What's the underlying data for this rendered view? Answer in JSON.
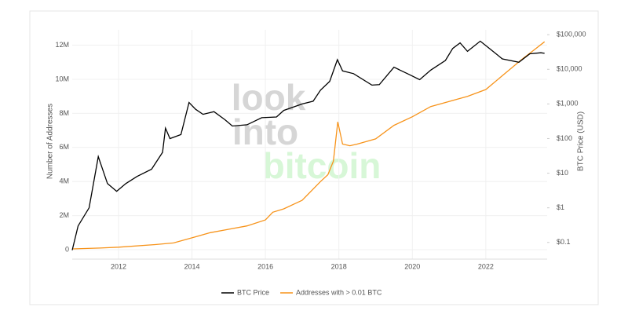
{
  "chart_data": {
    "type": "line",
    "watermark": [
      "look",
      "into",
      "bitcoin"
    ],
    "ylabel": "Number of Addresses",
    "y2label": "BTC Price (USD)",
    "xlim": [
      2010.74,
      2023.67
    ],
    "xticks": [
      2012,
      2014,
      2016,
      2018,
      2020,
      2022
    ],
    "ylim": [
      -550000,
      12900000
    ],
    "yticks": [
      0,
      {
        "value": 2000000,
        "label": "2M"
      },
      {
        "value": 4000000,
        "label": "4M"
      },
      {
        "value": 6000000,
        "label": "6M"
      },
      {
        "value": 8000000,
        "label": "8M"
      },
      {
        "value": 10000000,
        "label": "10M"
      },
      {
        "value": 12000000,
        "label": "12M"
      }
    ],
    "y2lim": [
      0.033,
      138000
    ],
    "y2log": true,
    "y2ticks": [
      {
        "value": 0.1,
        "label": "$0.1"
      },
      {
        "value": 1,
        "label": "$1"
      },
      {
        "value": 10,
        "label": "$10"
      },
      {
        "value": 100,
        "label": "$100"
      },
      {
        "value": 1000,
        "label": "$1,000"
      },
      {
        "value": 10000,
        "label": "$10,000"
      },
      {
        "value": 100000,
        "label": "$100,000"
      }
    ],
    "series": [
      {
        "name": "BTC Price",
        "color": "#000000",
        "axis": "y2",
        "x": [
          2010.74,
          2010.9,
          2011.2,
          2011.45,
          2011.7,
          2011.95,
          2012.2,
          2012.5,
          2012.9,
          2013.2,
          2013.28,
          2013.4,
          2013.7,
          2013.92,
          2014.1,
          2014.3,
          2014.6,
          2014.9,
          2015.1,
          2015.5,
          2015.9,
          2016.3,
          2016.5,
          2017.0,
          2017.3,
          2017.5,
          2017.75,
          2017.96,
          2018.1,
          2018.4,
          2018.9,
          2019.1,
          2019.5,
          2019.9,
          2020.2,
          2020.5,
          2020.9,
          2021.1,
          2021.3,
          2021.5,
          2021.85,
          2022.1,
          2022.45,
          2022.9,
          2023.2,
          2023.5,
          2023.6
        ],
        "values": [
          0.06,
          0.3,
          1,
          30,
          5,
          3,
          5,
          8,
          13,
          40,
          200,
          100,
          130,
          1100,
          700,
          500,
          600,
          350,
          230,
          250,
          400,
          420,
          650,
          1000,
          1200,
          2500,
          4500,
          19000,
          9000,
          7500,
          3500,
          3600,
          11500,
          7200,
          5000,
          9500,
          18000,
          40000,
          58000,
          33000,
          65000,
          40000,
          20000,
          16000,
          28000,
          30000,
          29000
        ]
      },
      {
        "name": "Addresses with > 0.01 BTC",
        "color": "#f7931a",
        "x": [
          2010.74,
          2011.5,
          2012,
          2013,
          2013.5,
          2014,
          2014.5,
          2015,
          2015.5,
          2016,
          2016.2,
          2016.5,
          2017,
          2017.5,
          2017.7,
          2017.85,
          2017.97,
          2018.1,
          2018.3,
          2018.5,
          2019,
          2019.5,
          2020,
          2020.5,
          2021,
          2021.5,
          2022,
          2022.5,
          2023,
          2023.3,
          2023.6
        ],
        "values": [
          50000,
          100000,
          150000,
          300000,
          400000,
          700000,
          1000000,
          1200000,
          1400000,
          1750000,
          2200000,
          2400000,
          2900000,
          4000000,
          4400000,
          5200000,
          7500000,
          6200000,
          6100000,
          6200000,
          6500000,
          7300000,
          7800000,
          8400000,
          8700000,
          9000000,
          9400000,
          10300000,
          11200000,
          11700000,
          12200000
        ]
      }
    ]
  }
}
